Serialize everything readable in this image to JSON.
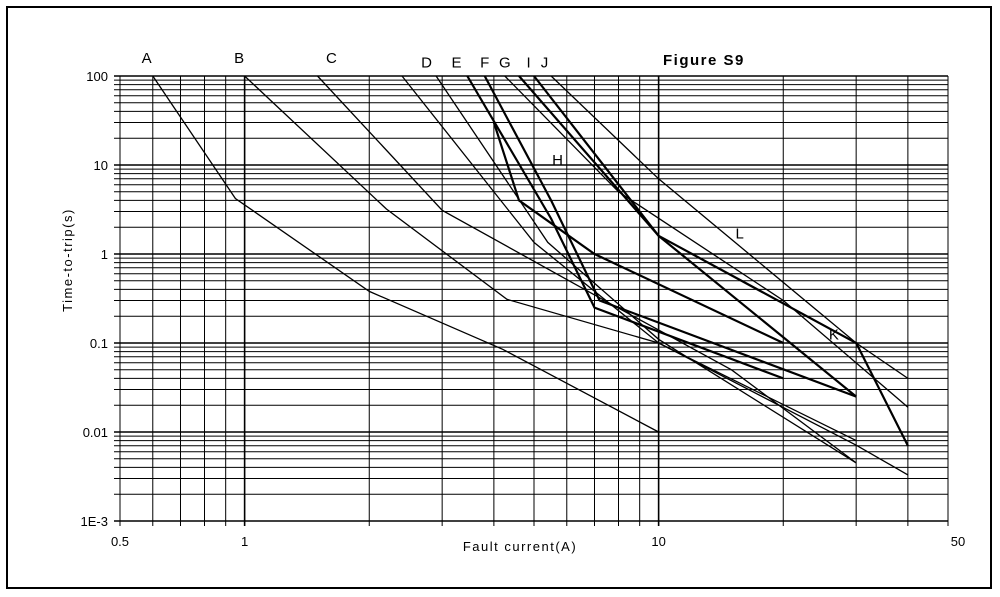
{
  "chart_data": {
    "type": "line",
    "title": "Figure S9",
    "xlabel": "Fault current(A)",
    "ylabel": "Time-to-trip(s)",
    "x_scale": "log",
    "y_scale": "log",
    "xlim": [
      0.5,
      50
    ],
    "ylim": [
      0.001,
      100
    ],
    "grid": true,
    "x_tick_labels": [
      {
        "value": 0.5,
        "label": "0.5"
      },
      {
        "value": 1,
        "label": "1"
      },
      {
        "value": 10,
        "label": "10"
      },
      {
        "value": 50,
        "label": "50"
      }
    ],
    "y_tick_labels": [
      {
        "value": 100,
        "label": "100"
      },
      {
        "value": 10,
        "label": "10"
      },
      {
        "value": 1,
        "label": "1"
      },
      {
        "value": 0.1,
        "label": "0.1"
      },
      {
        "value": 0.01,
        "label": "0.01"
      },
      {
        "value": 0.001,
        "label": "1E-3"
      }
    ],
    "curve_labels": [
      {
        "label": "A",
        "x": 0.58,
        "y": 140
      },
      {
        "label": "B",
        "x": 0.97,
        "y": 140
      },
      {
        "label": "C",
        "x": 1.62,
        "y": 140
      },
      {
        "label": "D",
        "x": 2.75,
        "y": 125
      },
      {
        "label": "E",
        "x": 3.25,
        "y": 125
      },
      {
        "label": "F",
        "x": 3.8,
        "y": 125
      },
      {
        "label": "G",
        "x": 4.25,
        "y": 125
      },
      {
        "label": "I",
        "x": 4.85,
        "y": 125
      },
      {
        "label": "J",
        "x": 5.3,
        "y": 125
      },
      {
        "label": "H",
        "x": 5.7,
        "y": 10
      },
      {
        "label": "L",
        "x": 15.7,
        "y": 1.5
      },
      {
        "label": "K",
        "x": 26.5,
        "y": 0.11
      }
    ],
    "series": [
      {
        "name": "A",
        "x": [
          0.6,
          0.95,
          2.0,
          4.2,
          10
        ],
        "y": [
          100,
          4.2,
          0.38,
          0.085,
          0.01
        ]
      },
      {
        "name": "B",
        "x": [
          1.0,
          2.2,
          4.3,
          10,
          30
        ],
        "y": [
          100,
          3.2,
          0.31,
          0.1,
          0.008
        ]
      },
      {
        "name": "C",
        "x": [
          1.5,
          3.0,
          7.5,
          15,
          30
        ],
        "y": [
          100,
          3.1,
          0.29,
          0.05,
          0.0045
        ]
      },
      {
        "name": "D",
        "x": [
          2.4,
          5.0,
          10,
          30,
          40
        ],
        "y": [
          100,
          1.35,
          0.1,
          0.0071,
          0.0033
        ]
      },
      {
        "name": "E",
        "x": [
          2.9,
          5.4,
          10,
          30
        ],
        "y": [
          100,
          1.35,
          0.11,
          0.0045
        ]
      },
      {
        "name": "F",
        "x": [
          3.45,
          5.5,
          7.0,
          20
        ],
        "y": [
          100,
          2.5,
          0.25,
          0.04
        ]
      },
      {
        "name": "G",
        "x": [
          3.8,
          5.5,
          7.2,
          30
        ],
        "y": [
          100,
          4.0,
          0.3,
          0.025
        ]
      },
      {
        "name": "H",
        "x": [
          4.0,
          4.6,
          7.0,
          20
        ],
        "y": [
          30,
          4.0,
          1.0,
          0.1
        ]
      },
      {
        "name": "I",
        "x": [
          4.25,
          8.0,
          20,
          40
        ],
        "y": [
          100,
          5.0,
          0.3,
          0.019
        ]
      },
      {
        "name": "J",
        "x": [
          4.6,
          10,
          30,
          40
        ],
        "y": [
          100,
          1.6,
          0.1,
          0.007
        ]
      },
      {
        "name": "K",
        "x": [
          5.0,
          10,
          30
        ],
        "y": [
          100,
          1.6,
          0.025
        ]
      },
      {
        "name": "L",
        "x": [
          5.5,
          10,
          30,
          40
        ],
        "y": [
          100,
          7.0,
          0.1,
          0.04
        ]
      }
    ]
  }
}
